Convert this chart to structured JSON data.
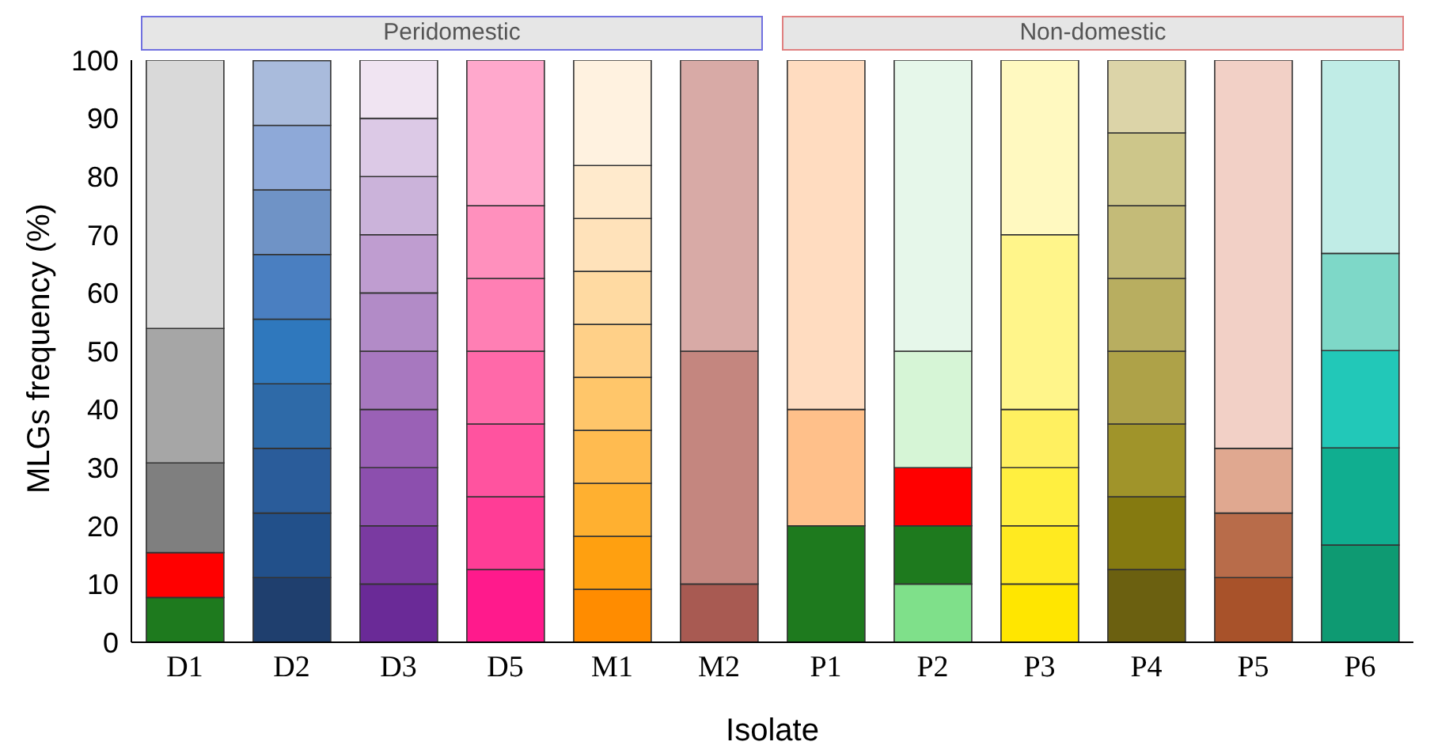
{
  "chart_data": {
    "type": "bar",
    "stacked": true,
    "xlabel": "Isolate",
    "ylabel": "MLGs frequency (%)",
    "categories": [
      "D1",
      "D2",
      "D3",
      "D5",
      "M1",
      "M2",
      "P1",
      "P2",
      "P3",
      "P4",
      "P5",
      "P6"
    ],
    "annotations": [
      "Peridomestic",
      "Non-domestic"
    ],
    "ylim": [
      0,
      100
    ],
    "yticks": [
      0,
      10,
      20,
      30,
      40,
      50,
      60,
      70,
      80,
      90,
      100
    ],
    "grid": false,
    "legend": false,
    "series": [
      {
        "values": [
          7.7,
          11.1,
          10,
          12.5,
          9.1,
          10,
          20,
          10,
          10,
          12.5,
          11.1,
          16.7
        ],
        "colors": [
          "#1e7a1e",
          "#1f3f6e",
          "#6a2a97",
          "#ff1a8c",
          "#ff8c00",
          "#a85a52",
          "#1e7a1e",
          "#7fe08a",
          "#ffe600",
          "#6b6010",
          "#a8522a",
          "#0e9a72"
        ]
      },
      {
        "values": [
          7.7,
          11.1,
          10,
          12.5,
          9.1,
          40,
          20,
          10,
          10,
          12.5,
          11.1,
          16.7
        ],
        "colors": [
          "#ff0000",
          "#22508a",
          "#7a3aa1",
          "#ff3d96",
          "#ffa010",
          "#c4867f",
          "#ffc08a",
          "#1e7a1e",
          "#ffea20",
          "#857a10",
          "#b86c4a",
          "#10ae90"
        ]
      },
      {
        "values": [
          15.4,
          11.1,
          10,
          12.5,
          9.1,
          50,
          60,
          10,
          10,
          12.5,
          11.1,
          16.7
        ],
        "colors": [
          "#7f7f7f",
          "#2a5c9a",
          "#8c4fae",
          "#ff539f",
          "#ffb030",
          "#d8aaa6",
          "#ffdcc0",
          "#ff0000",
          "#ffef40",
          "#a0942a",
          "#e0a890",
          "#22c8b8"
        ]
      },
      {
        "values": [
          23.1,
          11.1,
          10,
          12.5,
          9.1,
          null,
          null,
          20,
          10,
          12.5,
          66.7,
          16.7
        ],
        "colors": [
          "#a6a6a6",
          "#2e6aa8",
          "#9a61b6",
          "#ff69a9",
          "#ffbb50",
          "#d8aaa6",
          "#ffdcc0",
          "#d6f5d6",
          "#fff060",
          "#aea248",
          "#f2d0c6",
          "#7ed8c8"
        ]
      },
      {
        "values": [
          46.1,
          11.1,
          10,
          12.5,
          9.1,
          null,
          null,
          50,
          30,
          12.5,
          null,
          33.2
        ],
        "colors": [
          "#d9d9d9",
          "#2f78bd",
          "#a778bf",
          "#ff7fb4",
          "#ffc66a",
          "#d8aaa6",
          "#ffdcc0",
          "#e6f7ea",
          "#fff58a",
          "#b8ae60",
          "#f2d0c6",
          "#c0ece6"
        ]
      },
      {
        "values": [
          null,
          11.1,
          10,
          12.5,
          9.1,
          null,
          null,
          null,
          30,
          12.5,
          null,
          null
        ],
        "colors": [
          "#d9d9d9",
          "#4a7fc1",
          "#b28bc7",
          "#ff90bd",
          "#ffd088",
          "#d8aaa6",
          "#ffdcc0",
          "#e6f7ea",
          "#fff9c0",
          "#c4bb78",
          "#f2d0c6",
          "#c0ece6"
        ]
      },
      {
        "values": [
          null,
          11.1,
          10,
          25,
          9.1,
          null,
          null,
          null,
          null,
          12.5,
          null,
          null
        ],
        "colors": [
          "#d9d9d9",
          "#6f93c6",
          "#bf9dd0",
          "#ffa8cc",
          "#ffdaa2",
          "#d8aaa6",
          "#ffdcc0",
          "#e6f7ea",
          "#fff9c0",
          "#cdc68a",
          "#f2d0c6",
          "#c0ece6"
        ]
      },
      {
        "values": [
          null,
          11.1,
          10,
          null,
          9.1,
          null,
          null,
          null,
          null,
          12.5,
          null,
          null
        ],
        "colors": [
          "#d9d9d9",
          "#8ea9d8",
          "#cbb3da",
          "#ffa8cc",
          "#ffe2ba",
          "#d8aaa6",
          "#ffdcc0",
          "#e6f7ea",
          "#fff9c0",
          "#dcd4a8",
          "#f2d0c6",
          "#c0ece6"
        ]
      },
      {
        "values": [
          null,
          11.1,
          10,
          null,
          9.1,
          null,
          null,
          null,
          null,
          null,
          null,
          null
        ],
        "colors": [
          "#d9d9d9",
          "#a9bbdc",
          "#dcc9e6",
          "#ffa8cc",
          "#ffeacc",
          "#d8aaa6",
          "#ffdcc0",
          "#e6f7ea",
          "#fff9c0",
          "#dcd4a8",
          "#f2d0c6",
          "#c0ece6"
        ]
      },
      {
        "values": [
          null,
          null,
          10,
          null,
          18.1,
          null,
          null,
          null,
          null,
          null,
          null,
          null
        ],
        "colors": [
          "#d9d9d9",
          "#a9bbdc",
          "#f0e4f2",
          "#ffa8cc",
          "#fff2e0",
          "#d8aaa6",
          "#ffdcc0",
          "#e6f7ea",
          "#fff9c0",
          "#dcd4a8",
          "#f2d0c6",
          "#c0ece6"
        ]
      }
    ]
  }
}
